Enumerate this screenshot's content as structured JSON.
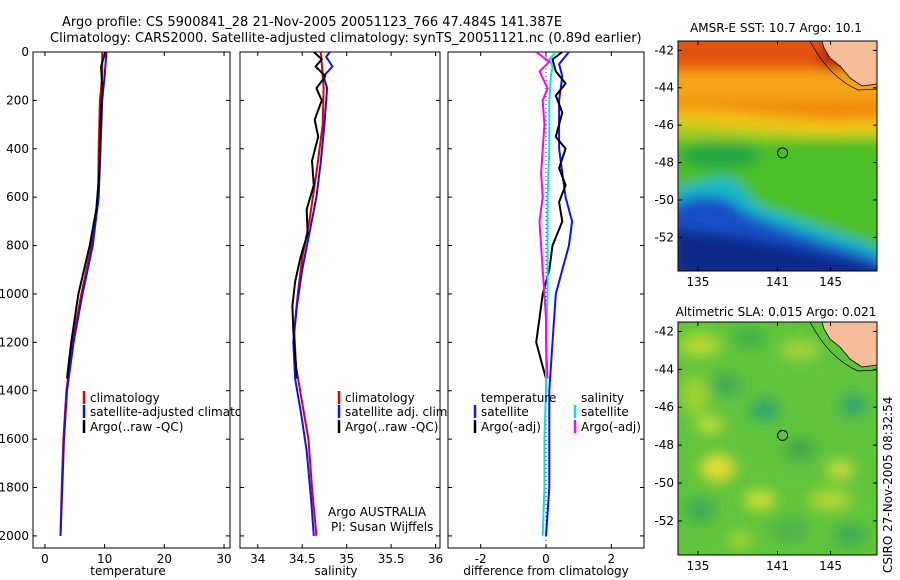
{
  "header": {
    "line1": "Argo profile: CS 5900841_28 21-Nov-2005 20051123_766 47.484S 141.387E",
    "line2": "Climatology: CARS2000. Satellite-adjusted climatology: synTS_20051121.nc (0.89d earlier)"
  },
  "colors": {
    "climatology": "#e00000",
    "satellite": "#1010ff",
    "argo": "#000000",
    "satellite_diff": "#00e5e5",
    "argo_adj": "#ff00ff",
    "coast": "#f7bd9a"
  },
  "chart_data": [
    {
      "type": "line",
      "id": "temperature",
      "xlabel": "temperature",
      "ylabel": "",
      "xlim": [
        -2,
        31
      ],
      "ylim": [
        2050,
        0
      ],
      "xticks": [
        0,
        10,
        20,
        30
      ],
      "yticks": [
        0,
        200,
        400,
        600,
        800,
        1000,
        1200,
        1400,
        1600,
        1800,
        2000
      ],
      "series": [
        {
          "name": "climatology",
          "color": "#e00000",
          "points": [
            [
              9.6,
              0
            ],
            [
              9.6,
              100
            ],
            [
              9.2,
              200
            ],
            [
              9.0,
              400
            ],
            [
              8.9,
              600
            ],
            [
              7.8,
              800
            ],
            [
              6.1,
              1000
            ],
            [
              4.6,
              1200
            ],
            [
              3.6,
              1400
            ],
            [
              3.1,
              1600
            ],
            [
              2.8,
              1800
            ],
            [
              2.6,
              2000
            ]
          ]
        },
        {
          "name": "satellite-adjusted climatology",
          "color": "#1010ff",
          "points": [
            [
              10.3,
              0
            ],
            [
              10.0,
              100
            ],
            [
              9.6,
              200
            ],
            [
              9.3,
              400
            ],
            [
              9.0,
              600
            ],
            [
              8.0,
              800
            ],
            [
              6.3,
              1000
            ],
            [
              4.8,
              1200
            ],
            [
              3.7,
              1400
            ],
            [
              3.2,
              1600
            ],
            [
              2.9,
              1800
            ],
            [
              2.6,
              2000
            ]
          ]
        },
        {
          "name": "Argo(..raw -QC)",
          "color": "#000000",
          "points": [
            [
              10.1,
              0
            ],
            [
              9.4,
              60
            ],
            [
              9.6,
              150
            ],
            [
              9.3,
              300
            ],
            [
              9.1,
              500
            ],
            [
              8.6,
              650
            ],
            [
              7.5,
              800
            ],
            [
              5.6,
              1000
            ],
            [
              4.4,
              1200
            ],
            [
              3.7,
              1350
            ]
          ]
        }
      ],
      "legend": [
        "climatology",
        "satellite-adjusted climatology",
        "Argo(..raw -QC)"
      ],
      "legend_position": "bottom-right"
    },
    {
      "type": "line",
      "id": "salinity",
      "xlabel": "salinity",
      "ylabel": "",
      "xlim": [
        33.8,
        36.05
      ],
      "ylim": [
        2050,
        0
      ],
      "xticks": [
        34,
        34.5,
        35,
        35.5,
        36
      ],
      "yticks": [
        0,
        200,
        400,
        600,
        800,
        1000,
        1200,
        1400,
        1600,
        1800,
        2000
      ],
      "series": [
        {
          "name": "climatology",
          "color": "#e00000",
          "points": [
            [
              34.71,
              0
            ],
            [
              34.74,
              150
            ],
            [
              34.73,
              300
            ],
            [
              34.66,
              500
            ],
            [
              34.58,
              700
            ],
            [
              34.5,
              850
            ],
            [
              34.45,
              1000
            ],
            [
              34.41,
              1150
            ],
            [
              34.43,
              1300
            ],
            [
              34.5,
              1450
            ],
            [
              34.57,
              1600
            ],
            [
              34.61,
              1800
            ],
            [
              34.66,
              2000
            ]
          ]
        },
        {
          "name": "satellite adj. clim.",
          "color": "#1010ff",
          "points": [
            [
              34.81,
              0
            ],
            [
              34.77,
              20
            ],
            [
              34.84,
              60
            ],
            [
              34.74,
              100
            ],
            [
              34.78,
              150
            ],
            [
              34.75,
              300
            ],
            [
              34.71,
              450
            ],
            [
              34.66,
              600
            ],
            [
              34.58,
              750
            ],
            [
              34.5,
              900
            ],
            [
              34.44,
              1050
            ],
            [
              34.4,
              1200
            ],
            [
              34.42,
              1350
            ],
            [
              34.49,
              1500
            ],
            [
              34.55,
              1650
            ],
            [
              34.6,
              1850
            ],
            [
              34.63,
              2000
            ]
          ]
        },
        {
          "name": "Argo(..raw -QC)",
          "color": "#000000",
          "points": [
            [
              34.63,
              0
            ],
            [
              34.72,
              30
            ],
            [
              34.65,
              60
            ],
            [
              34.76,
              100
            ],
            [
              34.66,
              150
            ],
            [
              34.72,
              200
            ],
            [
              34.64,
              280
            ],
            [
              34.68,
              350
            ],
            [
              34.61,
              450
            ],
            [
              34.63,
              550
            ],
            [
              34.55,
              650
            ],
            [
              34.56,
              750
            ],
            [
              34.48,
              850
            ],
            [
              34.42,
              950
            ],
            [
              34.39,
              1050
            ],
            [
              34.4,
              1150
            ],
            [
              34.42,
              1250
            ],
            [
              34.44,
              1350
            ]
          ]
        }
      ],
      "legend": [
        "climatology",
        "satellite adj. clim.",
        "Argo(..raw -QC)"
      ],
      "legend_position": "bottom-right",
      "annotation": [
        "Argo AUSTRALIA",
        "PI: Susan Wijffels"
      ]
    },
    {
      "type": "line",
      "id": "difference",
      "xlabel": "difference from climatology",
      "ylabel": "",
      "xlim": [
        -3,
        3
      ],
      "ylim": [
        2050,
        0
      ],
      "xticks": [
        -2,
        0,
        2
      ],
      "yticks": [
        0,
        200,
        400,
        600,
        800,
        1000,
        1200,
        1400,
        1600,
        1800,
        2000
      ],
      "series": [
        {
          "name": "temperature satellite",
          "color": "#1010ff",
          "points": [
            [
              0.7,
              0
            ],
            [
              0.4,
              50
            ],
            [
              0.5,
              100
            ],
            [
              0.4,
              200
            ],
            [
              0.4,
              400
            ],
            [
              0.5,
              500
            ],
            [
              0.6,
              600
            ],
            [
              0.8,
              700
            ],
            [
              0.7,
              800
            ],
            [
              0.5,
              900
            ],
            [
              0.3,
              1000
            ],
            [
              0.2,
              1200
            ],
            [
              0.1,
              1400
            ],
            [
              0.1,
              1600
            ],
            [
              0.1,
              1800
            ],
            [
              0.0,
              2000
            ]
          ]
        },
        {
          "name": "temperature Argo(-adj)",
          "color": "#000000",
          "points": [
            [
              0.5,
              0
            ],
            [
              0.2,
              30
            ],
            [
              0.3,
              80
            ],
            [
              0.6,
              130
            ],
            [
              0.3,
              180
            ],
            [
              0.5,
              250
            ],
            [
              0.3,
              350
            ],
            [
              0.6,
              400
            ],
            [
              0.4,
              480
            ],
            [
              0.6,
              550
            ],
            [
              0.4,
              620
            ],
            [
              0.5,
              700
            ],
            [
              0.2,
              800
            ],
            [
              0.1,
              900
            ],
            [
              -0.1,
              1000
            ],
            [
              -0.2,
              1100
            ],
            [
              -0.3,
              1200
            ],
            [
              -0.1,
              1300
            ],
            [
              0.0,
              1350
            ]
          ]
        },
        {
          "name": "salinity satellite",
          "color": "#00e5e5",
          "points": [
            [
              0.3,
              0
            ],
            [
              0.1,
              30
            ],
            [
              0.2,
              60
            ],
            [
              0.15,
              100
            ],
            [
              0.1,
              200
            ],
            [
              0.1,
              400
            ],
            [
              0.05,
              600
            ],
            [
              0.05,
              800
            ],
            [
              0.05,
              1000
            ],
            [
              0.0,
              1200
            ],
            [
              0.0,
              1400
            ],
            [
              -0.05,
              1600
            ],
            [
              -0.05,
              1800
            ],
            [
              -0.1,
              2000
            ]
          ]
        },
        {
          "name": "salinity Argo(-adj)",
          "color": "#ff00ff",
          "points": [
            [
              -0.3,
              0
            ],
            [
              0.1,
              40
            ],
            [
              -0.2,
              80
            ],
            [
              0.05,
              150
            ],
            [
              -0.1,
              200
            ],
            [
              -0.05,
              300
            ],
            [
              -0.15,
              500
            ],
            [
              -0.1,
              600
            ],
            [
              -0.2,
              700
            ],
            [
              -0.15,
              800
            ],
            [
              -0.1,
              900
            ],
            [
              -0.05,
              1000
            ],
            [
              0.0,
              1100
            ],
            [
              0.0,
              1200
            ],
            [
              0.05,
              1350
            ]
          ]
        }
      ],
      "legend": {
        "temperature_title": "temperature",
        "salinity_title": "salinity",
        "temperature_items": [
          "satellite",
          "Argo(-adj)"
        ],
        "salinity_items": [
          "satellite",
          "Argo(-adj)"
        ]
      },
      "legend_position": "bottom-center"
    },
    {
      "type": "heatmap",
      "id": "sst_map",
      "title": "AMSR-E SST: 10.7  Argo: 10.1",
      "xlim": [
        133.5,
        148.5
      ],
      "ylim": [
        -53.8,
        -41.5
      ],
      "xticks": [
        135,
        141,
        145
      ],
      "yticks": [
        -42,
        -44,
        -46,
        -48,
        -50,
        -52
      ],
      "argo_location": {
        "lon": 141.387,
        "lat": -47.484
      }
    },
    {
      "type": "heatmap",
      "id": "sla_map",
      "title": "Altimetric SLA: 0.015  Argo: 0.021",
      "xlim": [
        133.5,
        148.5
      ],
      "ylim": [
        -53.8,
        -41.5
      ],
      "xticks": [
        135,
        141,
        145
      ],
      "yticks": [
        -42,
        -44,
        -46,
        -48,
        -50,
        -52
      ],
      "argo_location": {
        "lon": 141.387,
        "lat": -47.484
      }
    }
  ],
  "footer": {
    "stamp": "CSIRO 27-Nov-2005 08:32:54"
  }
}
